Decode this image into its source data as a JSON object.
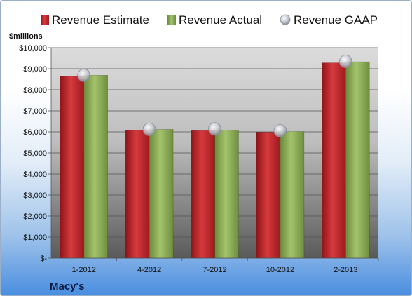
{
  "chart_data": {
    "type": "bar",
    "title": "Macy's",
    "ylabel": "$millions",
    "xlabel": "",
    "categories": [
      "1-2012",
      "4-2012",
      "7-2012",
      "10-2012",
      "2-2013"
    ],
    "series": [
      {
        "name": "Revenue Estimate",
        "kind": "bar",
        "color": "#c0282d",
        "values": [
          8650,
          6080,
          6060,
          5990,
          9280
        ]
      },
      {
        "name": "Revenue Actual",
        "kind": "bar",
        "color": "#8cab58",
        "values": [
          8690,
          6120,
          6080,
          6020,
          9330
        ]
      },
      {
        "name": "Revenue GAAP",
        "kind": "marker",
        "color": "#b8bcc6",
        "values": [
          8690,
          6120,
          6140,
          6050,
          9350
        ]
      }
    ],
    "ylim": [
      0,
      10000
    ],
    "y_ticks": [
      {
        "value": 0,
        "label": "$-"
      },
      {
        "value": 1000,
        "label": "$1,000"
      },
      {
        "value": 2000,
        "label": "$2,000"
      },
      {
        "value": 3000,
        "label": "$3,000"
      },
      {
        "value": 4000,
        "label": "$4,000"
      },
      {
        "value": 5000,
        "label": "$5,000"
      },
      {
        "value": 6000,
        "label": "$6,000"
      },
      {
        "value": 7000,
        "label": "$7,000"
      },
      {
        "value": 8000,
        "label": "$8,000"
      },
      {
        "value": 9000,
        "label": "$9,000"
      },
      {
        "value": 10000,
        "label": "$10,000"
      }
    ],
    "grid": true,
    "legend_position": "top"
  }
}
